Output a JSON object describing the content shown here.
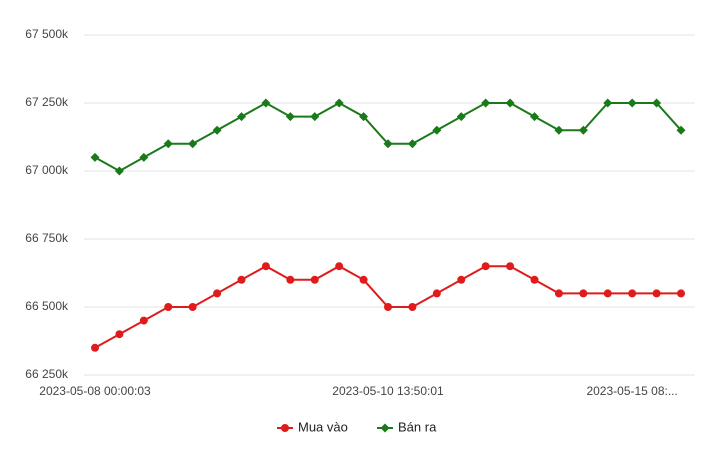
{
  "chart_data": {
    "type": "line",
    "categories": [
      "2023-05-08 00:00:03",
      null,
      null,
      null,
      null,
      null,
      null,
      null,
      null,
      null,
      null,
      null,
      "2023-05-10 13:50:01",
      null,
      null,
      null,
      null,
      null,
      null,
      null,
      null,
      null,
      "2023-05-15 08:...",
      null,
      null
    ],
    "series": [
      {
        "name": "Mua vào",
        "color": "#e01b1b",
        "marker": "circle",
        "values": [
          66350,
          66400,
          66450,
          66500,
          66500,
          66550,
          66600,
          66650,
          66600,
          66600,
          66650,
          66600,
          66500,
          66500,
          66550,
          66600,
          66650,
          66650,
          66600,
          66550,
          66550,
          66550,
          66550,
          66550,
          66550
        ]
      },
      {
        "name": "Bán ra",
        "color": "#1a7a1a",
        "marker": "diamond",
        "values": [
          67050,
          67000,
          67050,
          67100,
          67100,
          67150,
          67200,
          67250,
          67200,
          67200,
          67250,
          67200,
          67100,
          67100,
          67150,
          67200,
          67250,
          67250,
          67200,
          67150,
          67150,
          67250,
          67250,
          67250,
          67150
        ]
      }
    ],
    "ylim": [
      66250,
      67500
    ],
    "yticks": [
      {
        "value": 66250,
        "label": "66 250k"
      },
      {
        "value": 66500,
        "label": "66 500k"
      },
      {
        "value": 66750,
        "label": "66 750k"
      },
      {
        "value": 67000,
        "label": "67 000k"
      },
      {
        "value": 67250,
        "label": "67 250k"
      },
      {
        "value": 67500,
        "label": "67 500k"
      }
    ],
    "grid": true,
    "legend": "bottom"
  }
}
